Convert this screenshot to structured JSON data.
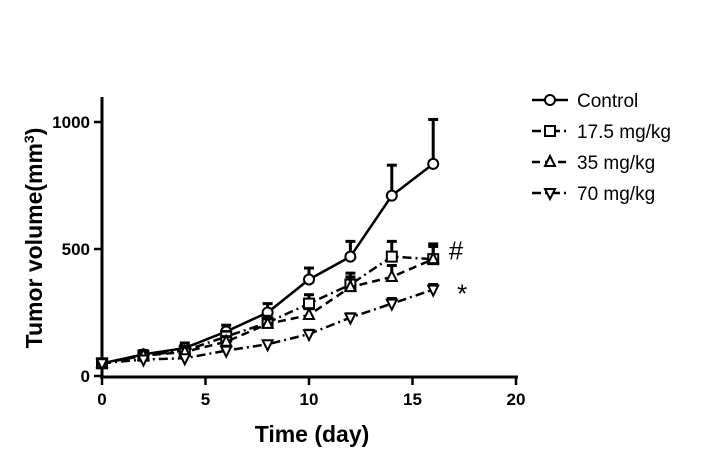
{
  "chart_data": {
    "type": "line",
    "xlabel": "Time (day)",
    "ylabel_main": "Tumor volume(mm",
    "ylabel_sup": "3",
    "ylabel_close": ")",
    "xlim": [
      0,
      20
    ],
    "ylim": [
      0,
      1000
    ],
    "x_ticks": [
      0,
      5,
      10,
      15,
      20
    ],
    "x_tick_labels": [
      "0",
      "5",
      "10",
      "15",
      "20"
    ],
    "y_ticks": [
      0,
      500,
      1000
    ],
    "y_tick_labels": [
      "0",
      "500",
      "1000"
    ],
    "grid": false,
    "legend_position": "top-right",
    "series": [
      {
        "name": "Control",
        "marker": "circle",
        "dash": "solid",
        "x": [
          0,
          2,
          4,
          6,
          8,
          10,
          12,
          14,
          16
        ],
        "y": [
          50,
          85,
          110,
          175,
          250,
          380,
          470,
          710,
          835
        ],
        "err": [
          10,
          15,
          20,
          25,
          35,
          45,
          60,
          120,
          175
        ]
      },
      {
        "name": "17.5 mg/kg",
        "marker": "square",
        "dash": "dash-dot",
        "x": [
          0,
          2,
          4,
          6,
          8,
          10,
          12,
          14,
          16
        ],
        "y": [
          50,
          80,
          100,
          155,
          210,
          285,
          360,
          470,
          460
        ],
        "err": [
          10,
          12,
          15,
          20,
          25,
          35,
          45,
          60,
          60
        ]
      },
      {
        "name": "35 mg/kg",
        "marker": "triangle-up",
        "dash": "dash",
        "x": [
          0,
          2,
          4,
          6,
          8,
          10,
          12,
          14,
          16
        ],
        "y": [
          50,
          80,
          95,
          135,
          205,
          240,
          350,
          390,
          460
        ],
        "err": [
          10,
          12,
          15,
          20,
          20,
          25,
          40,
          45,
          50
        ]
      },
      {
        "name": "70 mg/kg",
        "marker": "triangle-down",
        "dash": "dash-dot",
        "x": [
          0,
          2,
          4,
          6,
          8,
          10,
          12,
          14,
          16
        ],
        "y": [
          50,
          65,
          70,
          100,
          125,
          165,
          230,
          285,
          340
        ],
        "err": [
          8,
          10,
          10,
          12,
          12,
          15,
          15,
          20,
          20
        ]
      }
    ],
    "annotations": [
      {
        "text": "#",
        "x": 17.1,
        "y": 490
      },
      {
        "text": "*",
        "x": 17.4,
        "y": 320
      }
    ]
  }
}
